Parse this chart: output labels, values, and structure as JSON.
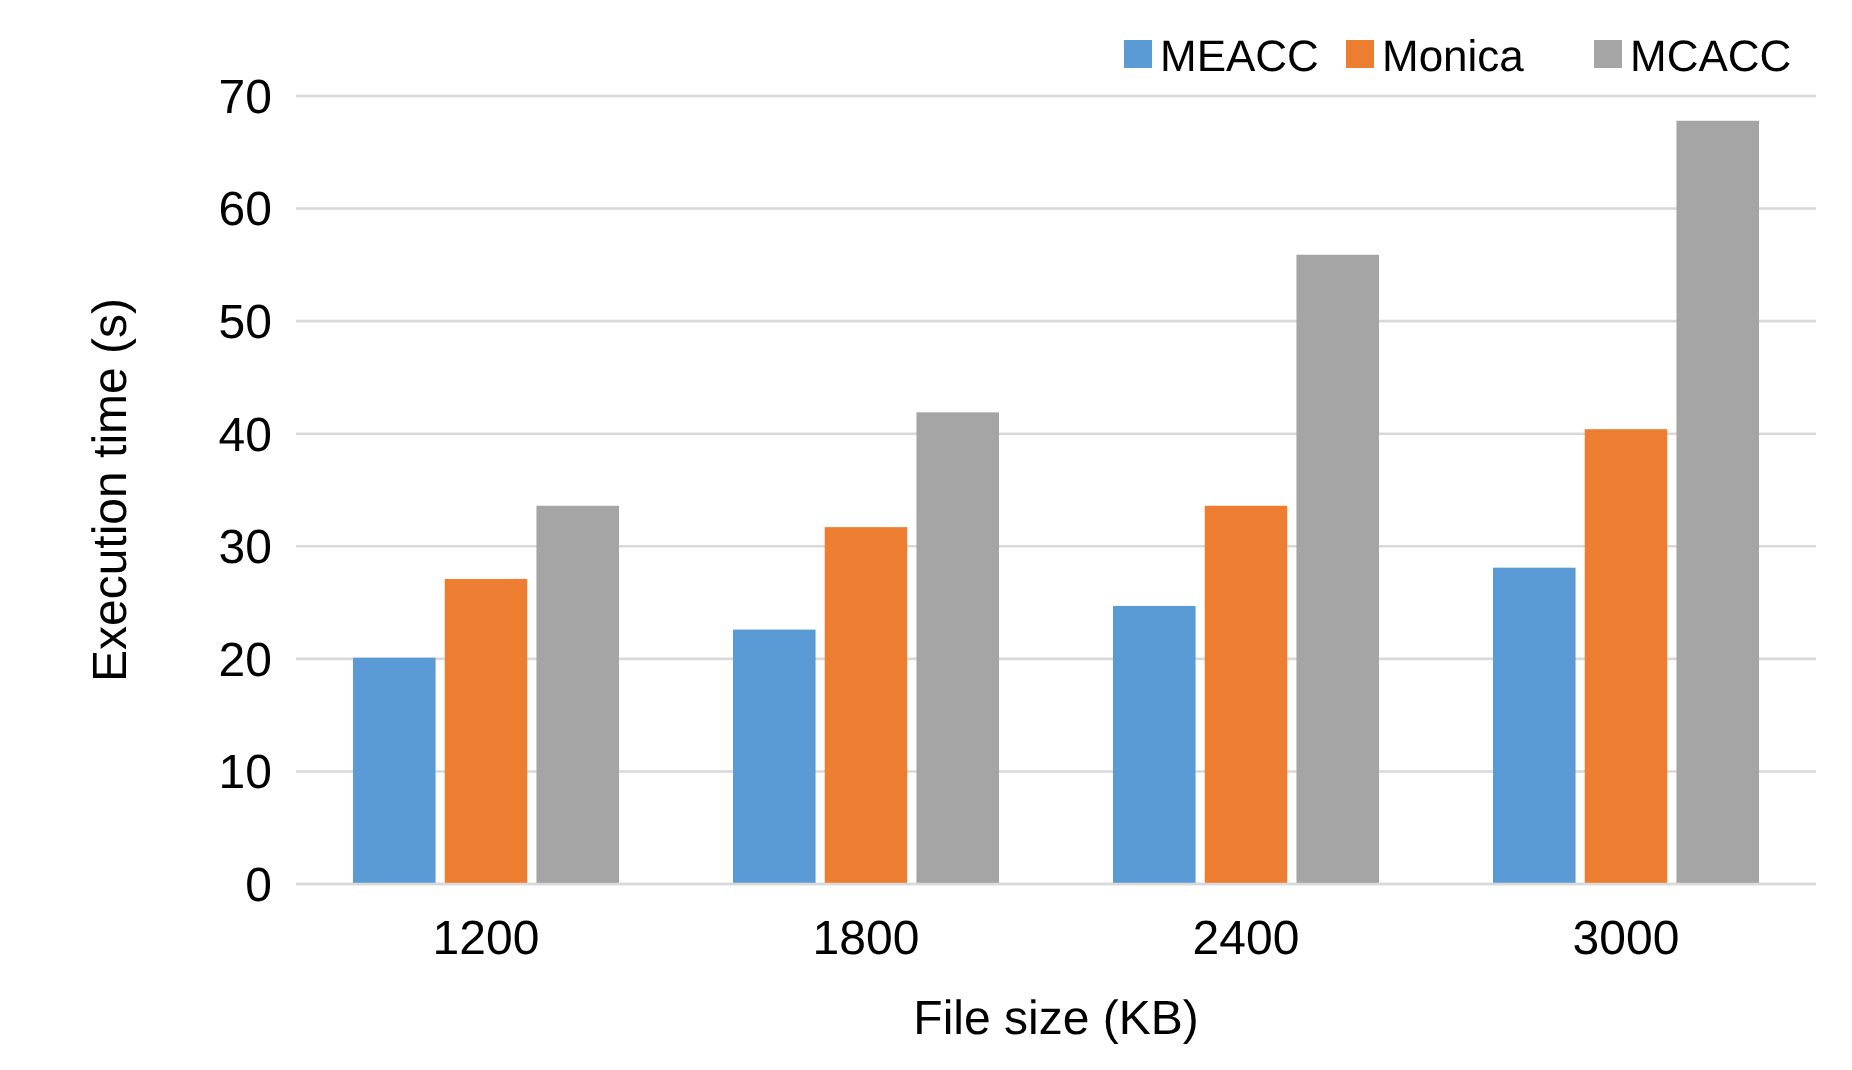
{
  "chart_data": {
    "type": "bar",
    "xlabel": "File size (KB)",
    "ylabel": "Execution time (s)",
    "categories": [
      "1200",
      "1800",
      "2400",
      "3000"
    ],
    "series": [
      {
        "name": "MEACC",
        "color": "#5b9bd5",
        "values": [
          20.1,
          22.6,
          24.7,
          28.1
        ]
      },
      {
        "name": "Monica",
        "color": "#ed7d31",
        "values": [
          27.1,
          31.7,
          33.6,
          40.4
        ]
      },
      {
        "name": "MCACC",
        "color": "#a5a5a5",
        "values": [
          33.6,
          41.9,
          55.9,
          67.8
        ]
      }
    ],
    "ylim": [
      0,
      70
    ],
    "yticks": [
      0,
      10,
      20,
      30,
      40,
      50,
      60,
      70
    ],
    "grid": "y",
    "legend": "top right"
  }
}
